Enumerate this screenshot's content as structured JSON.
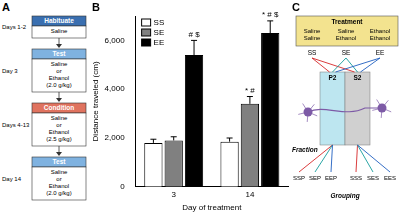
{
  "panel_labels": [
    "A",
    "B",
    "C"
  ],
  "flowchart": {
    "steps": [
      {
        "days": "Days 1-2",
        "title": "Habituate",
        "lines": [
          "Saline"
        ],
        "color": "#3a6fb0"
      },
      {
        "days": "Day 3",
        "title": "Test",
        "lines": [
          "Saline",
          "or",
          "Ethanol",
          "(2.0 g/kg)"
        ],
        "color": "#7fb2e0"
      },
      {
        "days": "Days 4-13",
        "title": "Condition",
        "lines": [
          "Saline",
          "or",
          "Ethanol",
          "(2.5 g/kg)"
        ],
        "color": "#e0735f"
      },
      {
        "days": "Day 14",
        "title": "Test",
        "lines": [
          "Saline",
          "or",
          "Ethanol",
          "(2.0 g/kg)"
        ],
        "color": "#7fb2e0"
      }
    ]
  },
  "chart_data": {
    "type": "bar",
    "categories": [
      "3",
      "14"
    ],
    "x_label": "Day of treatment",
    "y_label": "Distance traveled (cm)",
    "ylim": [
      0,
      7000
    ],
    "yticks": [
      0,
      2000,
      4000,
      6000
    ],
    "grid": false,
    "legend": "upper left",
    "series": [
      {
        "name": "SS",
        "color": "#ffffff",
        "values": [
          1800,
          1850
        ],
        "errors": [
          150,
          150
        ]
      },
      {
        "name": "SE",
        "color": "#808080",
        "values": [
          1900,
          3400
        ],
        "errors": [
          150,
          300
        ]
      },
      {
        "name": "EE",
        "color": "#000000",
        "values": [
          5400,
          6300
        ],
        "errors": [
          600,
          500
        ]
      }
    ],
    "annotations": [
      {
        "series": "EE",
        "category": "3",
        "text": "# $"
      },
      {
        "series": "SE",
        "category": "14",
        "text": "* #"
      },
      {
        "series": "EE",
        "category": "14",
        "text": "* # $"
      }
    ]
  },
  "diagram": {
    "treatment": {
      "title": "Treatment",
      "color": "#f3e38f",
      "groups": [
        {
          "lines": [
            "Saline",
            "Saline"
          ],
          "label": "SS",
          "color": "#d62728"
        },
        {
          "lines": [
            "Saline",
            "Ethanol"
          ],
          "label": "SE",
          "color": "#149c9c"
        },
        {
          "lines": [
            "Ethanol",
            "Ethanol"
          ],
          "label": "EE",
          "color": "#1f5fbf"
        }
      ]
    },
    "fraction": {
      "title": "Fraction",
      "boxes": [
        {
          "label": "P2",
          "color": "#bde6f0"
        },
        {
          "label": "S2",
          "color": "#d0d0d0"
        }
      ]
    },
    "grouping": {
      "title": "Grouping",
      "labels": [
        "SSP",
        "SEP",
        "EEP",
        "SSS",
        "SES",
        "EES"
      ]
    }
  }
}
